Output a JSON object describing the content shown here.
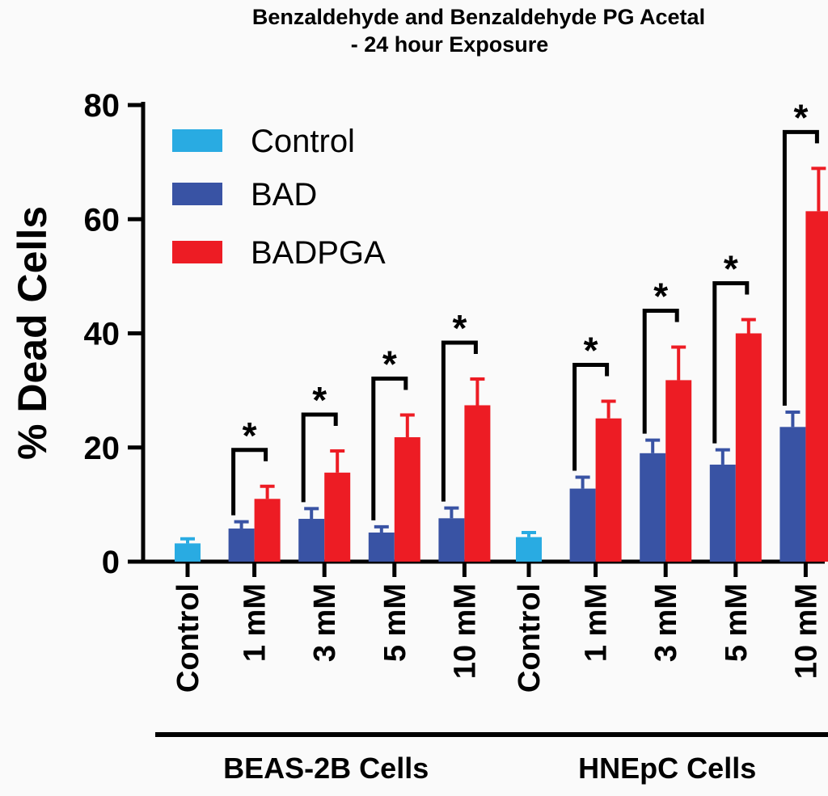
{
  "chart_data": {
    "type": "bar",
    "title_lines": [
      "Benzaldehyde and Benzaldehyde PG  Acetal",
      "- 24 hour Exposure"
    ],
    "ylabel": "% Dead Cells",
    "ylim": [
      0,
      80
    ],
    "yticks": [
      "0",
      "20",
      "40",
      "60",
      "80"
    ],
    "legend": [
      {
        "name": "Control",
        "color": "#29abe2"
      },
      {
        "name": "BAD",
        "color": "#3953a4"
      },
      {
        "name": "BADPGA",
        "color": "#ed1c24"
      }
    ],
    "significance_marker": "*",
    "groups": [
      {
        "label": "BEAS-2B Cells",
        "categories": [
          {
            "label": "Control",
            "bars": [
              {
                "series": "Control",
                "value": 3.2,
                "error": 0.8
              }
            ]
          },
          {
            "label": "1 mM",
            "bars": [
              {
                "series": "BAD",
                "value": 5.8,
                "error": 1.2
              },
              {
                "series": "BADPGA",
                "value": 11,
                "error": 2.2
              }
            ],
            "significant": true
          },
          {
            "label": "3 mM",
            "bars": [
              {
                "series": "BAD",
                "value": 7.5,
                "error": 1.8
              },
              {
                "series": "BADPGA",
                "value": 15.6,
                "error": 3.8
              }
            ],
            "significant": true
          },
          {
            "label": "5 mM",
            "bars": [
              {
                "series": "BAD",
                "value": 5.1,
                "error": 1
              },
              {
                "series": "BADPGA",
                "value": 21.8,
                "error": 3.9
              }
            ],
            "significant": true
          },
          {
            "label": "10 mM",
            "bars": [
              {
                "series": "BAD",
                "value": 7.6,
                "error": 1.8
              },
              {
                "series": "BADPGA",
                "value": 27.4,
                "error": 4.6
              }
            ],
            "significant": true
          }
        ]
      },
      {
        "label": "HNEpC Cells",
        "categories": [
          {
            "label": "Control",
            "bars": [
              {
                "series": "Control",
                "value": 4.3,
                "error": 0.8
              }
            ]
          },
          {
            "label": "1 mM",
            "bars": [
              {
                "series": "BAD",
                "value": 12.8,
                "error": 2
              },
              {
                "series": "BADPGA",
                "value": 25.1,
                "error": 3
              }
            ],
            "significant": true
          },
          {
            "label": "3 mM",
            "bars": [
              {
                "series": "BAD",
                "value": 19,
                "error": 2.3
              },
              {
                "series": "BADPGA",
                "value": 31.8,
                "error": 5.8
              }
            ],
            "significant": true
          },
          {
            "label": "5 mM",
            "bars": [
              {
                "series": "BAD",
                "value": 17,
                "error": 2.6
              },
              {
                "series": "BADPGA",
                "value": 40,
                "error": 2.4
              }
            ],
            "significant": true
          },
          {
            "label": "10 mM",
            "bars": [
              {
                "series": "BAD",
                "value": 23.6,
                "error": 2.6
              },
              {
                "series": "BADPGA",
                "value": 61.4,
                "error": 7.5
              }
            ],
            "significant": true
          }
        ]
      }
    ]
  }
}
